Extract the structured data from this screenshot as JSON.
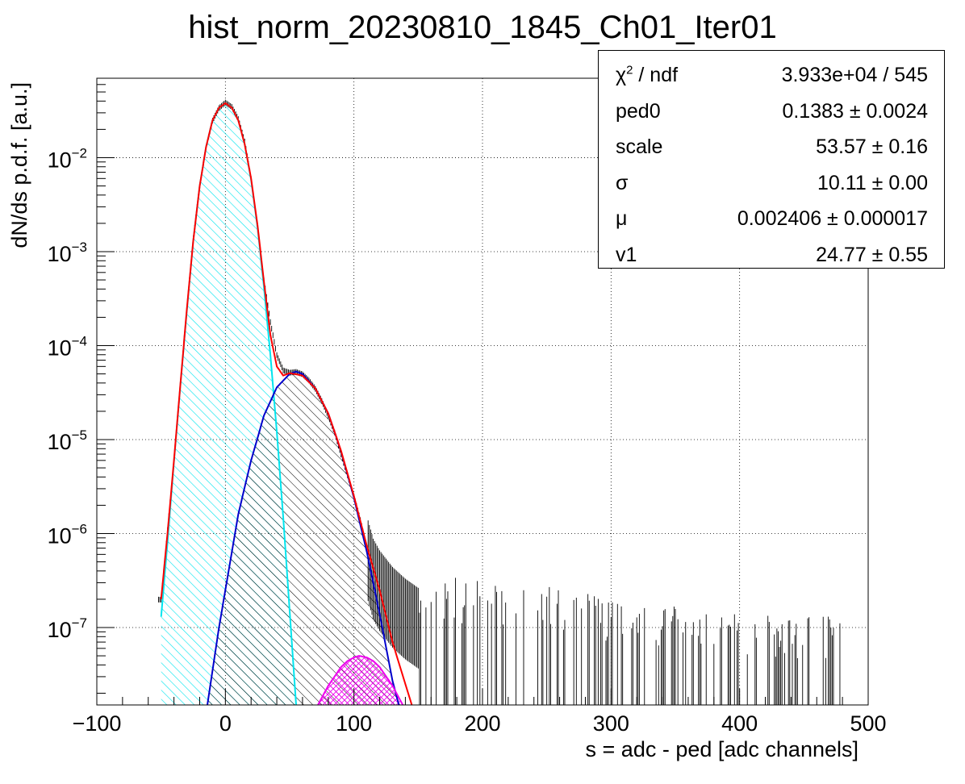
{
  "chart_data": {
    "type": "histogram",
    "title": "hist_norm_20230810_1845_Ch01_Iter01",
    "xlabel": "s = adc - ped [adc channels]",
    "ylabel": "dN/ds p.d.f. [a.u.]",
    "xlim": [
      -100,
      500
    ],
    "ylim": [
      1.5e-08,
      0.07
    ],
    "yscale": "log",
    "grid": true,
    "x_ticks": [
      -100,
      0,
      100,
      200,
      300,
      400,
      500
    ],
    "x_tick_labels": [
      "−100",
      "0",
      "100",
      "200",
      "300",
      "400",
      "500"
    ],
    "y_ticks": [
      1e-07,
      1e-06,
      1e-05,
      0.0001,
      0.001,
      0.01
    ],
    "y_tick_labels": [
      {
        "base": "10",
        "exp": "−7"
      },
      {
        "base": "10",
        "exp": "−6"
      },
      {
        "base": "10",
        "exp": "−5"
      },
      {
        "base": "10",
        "exp": "−4"
      },
      {
        "base": "10",
        "exp": "−3"
      },
      {
        "base": "10",
        "exp": "−2"
      }
    ],
    "series": [
      {
        "role": "data-histogram",
        "color": "#000000",
        "x": [
          -50,
          -45,
          -40,
          -35,
          -30,
          -25,
          -20,
          -15,
          -10,
          -5,
          0,
          5,
          10,
          15,
          20,
          25,
          30,
          35,
          40,
          45,
          50,
          55,
          60,
          65,
          70,
          75,
          80,
          85,
          90,
          95,
          100,
          105,
          110,
          115,
          120,
          130,
          140,
          150,
          170,
          200,
          250,
          300,
          400,
          480
        ],
        "y": [
          2e-07,
          1.1e-06,
          6e-06,
          4e-05,
          0.00025,
          0.0014,
          0.005,
          0.013,
          0.025,
          0.034,
          0.039,
          0.035,
          0.026,
          0.015,
          0.006,
          0.0019,
          0.0005,
          0.00018,
          8e-05,
          5.5e-05,
          5.2e-05,
          5.3e-05,
          5e-05,
          4.3e-05,
          3.5e-05,
          2.6e-05,
          1.8e-05,
          1.2e-05,
          7e-06,
          4.2e-06,
          2.5e-06,
          1.4e-06,
          7e-07,
          4e-07,
          3e-07,
          2e-07,
          1.5e-07,
          1.2e-07,
          1e-07,
          1e-07,
          8e-08,
          6e-08,
          4e-08,
          4e-08
        ]
      },
      {
        "role": "total-fit",
        "color": "#ff0000",
        "x": [
          -50,
          -45,
          -40,
          -35,
          -30,
          -25,
          -20,
          -15,
          -10,
          -5,
          0,
          5,
          10,
          15,
          20,
          25,
          30,
          35,
          40,
          45,
          50,
          60,
          70,
          80,
          90,
          100,
          110,
          120,
          130,
          140,
          145
        ],
        "y": [
          2e-07,
          1e-06,
          6e-06,
          3.9e-05,
          0.00024,
          0.0013,
          0.005,
          0.013,
          0.025,
          0.034,
          0.038,
          0.034,
          0.025,
          0.014,
          0.006,
          0.0019,
          0.00048,
          0.00013,
          6e-05,
          4.8e-05,
          5.1e-05,
          4.8e-05,
          3.5e-05,
          1.9e-05,
          7.6e-06,
          2.5e-06,
          7.4e-07,
          2.5e-07,
          7e-08,
          2.5e-08,
          1.5e-08
        ]
      },
      {
        "role": "pedestal-component",
        "color": "#00e5ee",
        "hatch": "cyan",
        "x": [
          -50,
          -45,
          -40,
          -35,
          -30,
          -25,
          -20,
          -15,
          -10,
          -5,
          0,
          5,
          10,
          15,
          20,
          25,
          30,
          35,
          40,
          45,
          50,
          55
        ],
        "y": [
          1.3e-07,
          8e-07,
          5.8e-06,
          3.8e-05,
          0.00023,
          0.0013,
          0.005,
          0.013,
          0.025,
          0.034,
          0.038,
          0.034,
          0.025,
          0.014,
          0.0058,
          0.0018,
          0.00042,
          8e-05,
          1.2e-05,
          1.5e-06,
          1.5e-07,
          1.5e-08
        ]
      },
      {
        "role": "1pe-component",
        "color": "#0000cc",
        "hatch": "black",
        "x": [
          -14,
          -5,
          0,
          10,
          20,
          30,
          40,
          50,
          55,
          60,
          70,
          80,
          90,
          100,
          110,
          120,
          130,
          135
        ],
        "y": [
          1.5e-08,
          1e-07,
          2.5e-07,
          1.6e-06,
          6e-06,
          1.8e-05,
          3.6e-05,
          5e-05,
          5.3e-05,
          5e-05,
          3.5e-05,
          1.9e-05,
          7.5e-06,
          2.4e-06,
          6.4e-07,
          1.4e-07,
          2.7e-08,
          1.5e-08
        ]
      },
      {
        "role": "2pe-component",
        "color": "#ee00ee",
        "hatch": "magenta",
        "x": [
          72,
          80,
          90,
          95,
          100,
          104,
          110,
          115,
          120,
          130,
          138
        ],
        "y": [
          1.5e-08,
          2.4e-08,
          3.8e-08,
          4.4e-08,
          4.8e-08,
          5e-08,
          4.8e-08,
          4.4e-08,
          3.8e-08,
          2.4e-08,
          1.5e-08
        ]
      }
    ],
    "stats": [
      {
        "name": "χ",
        "sup": "2",
        "suffix": " / ndf",
        "value": "3.933e+04 / 545"
      },
      {
        "name": "ped0",
        "sup": "",
        "suffix": "",
        "value": "0.1383 ± 0.0024"
      },
      {
        "name": "scale",
        "sup": "",
        "suffix": "",
        "value": "53.57 ± 0.16"
      },
      {
        "name": "σ",
        "sup": "",
        "suffix": "",
        "value": "10.11 ± 0.00"
      },
      {
        "name": "μ",
        "sup": "",
        "suffix": "",
        "value": "0.002406 ± 0.000017"
      },
      {
        "name": "v1",
        "sup": "",
        "suffix": "",
        "value": "24.77 ± 0.55"
      }
    ]
  }
}
